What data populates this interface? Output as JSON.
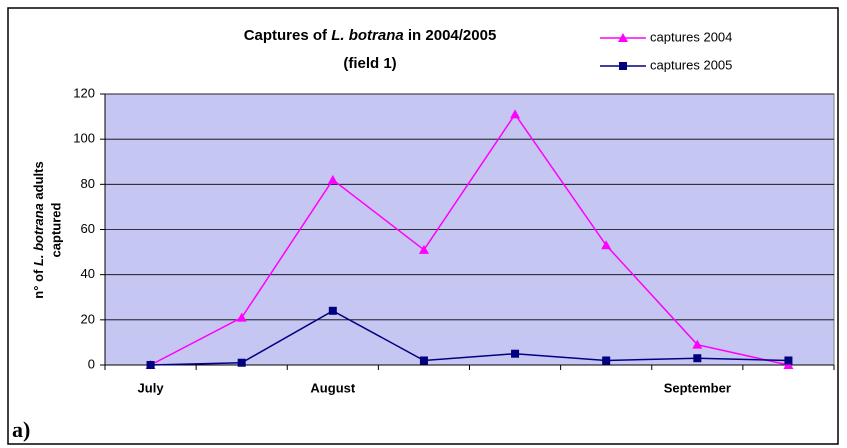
{
  "chart_data": {
    "type": "line",
    "title": [
      "Captures of ",
      "L. botrana",
      " in 2004/2005"
    ],
    "subtitle": "(field 1)",
    "ylabel": {
      "line1": [
        "n° of ",
        "L. botrana",
        " adults"
      ],
      "line2": "captured"
    },
    "categories": [
      "July",
      null,
      "August",
      null,
      null,
      null,
      "September",
      null
    ],
    "series": [
      {
        "name": "captures 2004",
        "color": "#ff00ff",
        "marker": "triangle",
        "values": [
          0,
          21,
          82,
          51,
          111,
          53,
          9,
          0
        ]
      },
      {
        "name": "captures 2005",
        "color": "#000080",
        "marker": "square",
        "values": [
          0,
          1,
          24,
          2,
          5,
          2,
          3,
          2
        ]
      }
    ],
    "ylim": [
      0,
      120
    ],
    "yticks": [
      0,
      20,
      40,
      60,
      80,
      100,
      120
    ],
    "grid": true,
    "legend": "top-right",
    "plot_background": "#c6c6f2",
    "panel_label": "a)"
  }
}
